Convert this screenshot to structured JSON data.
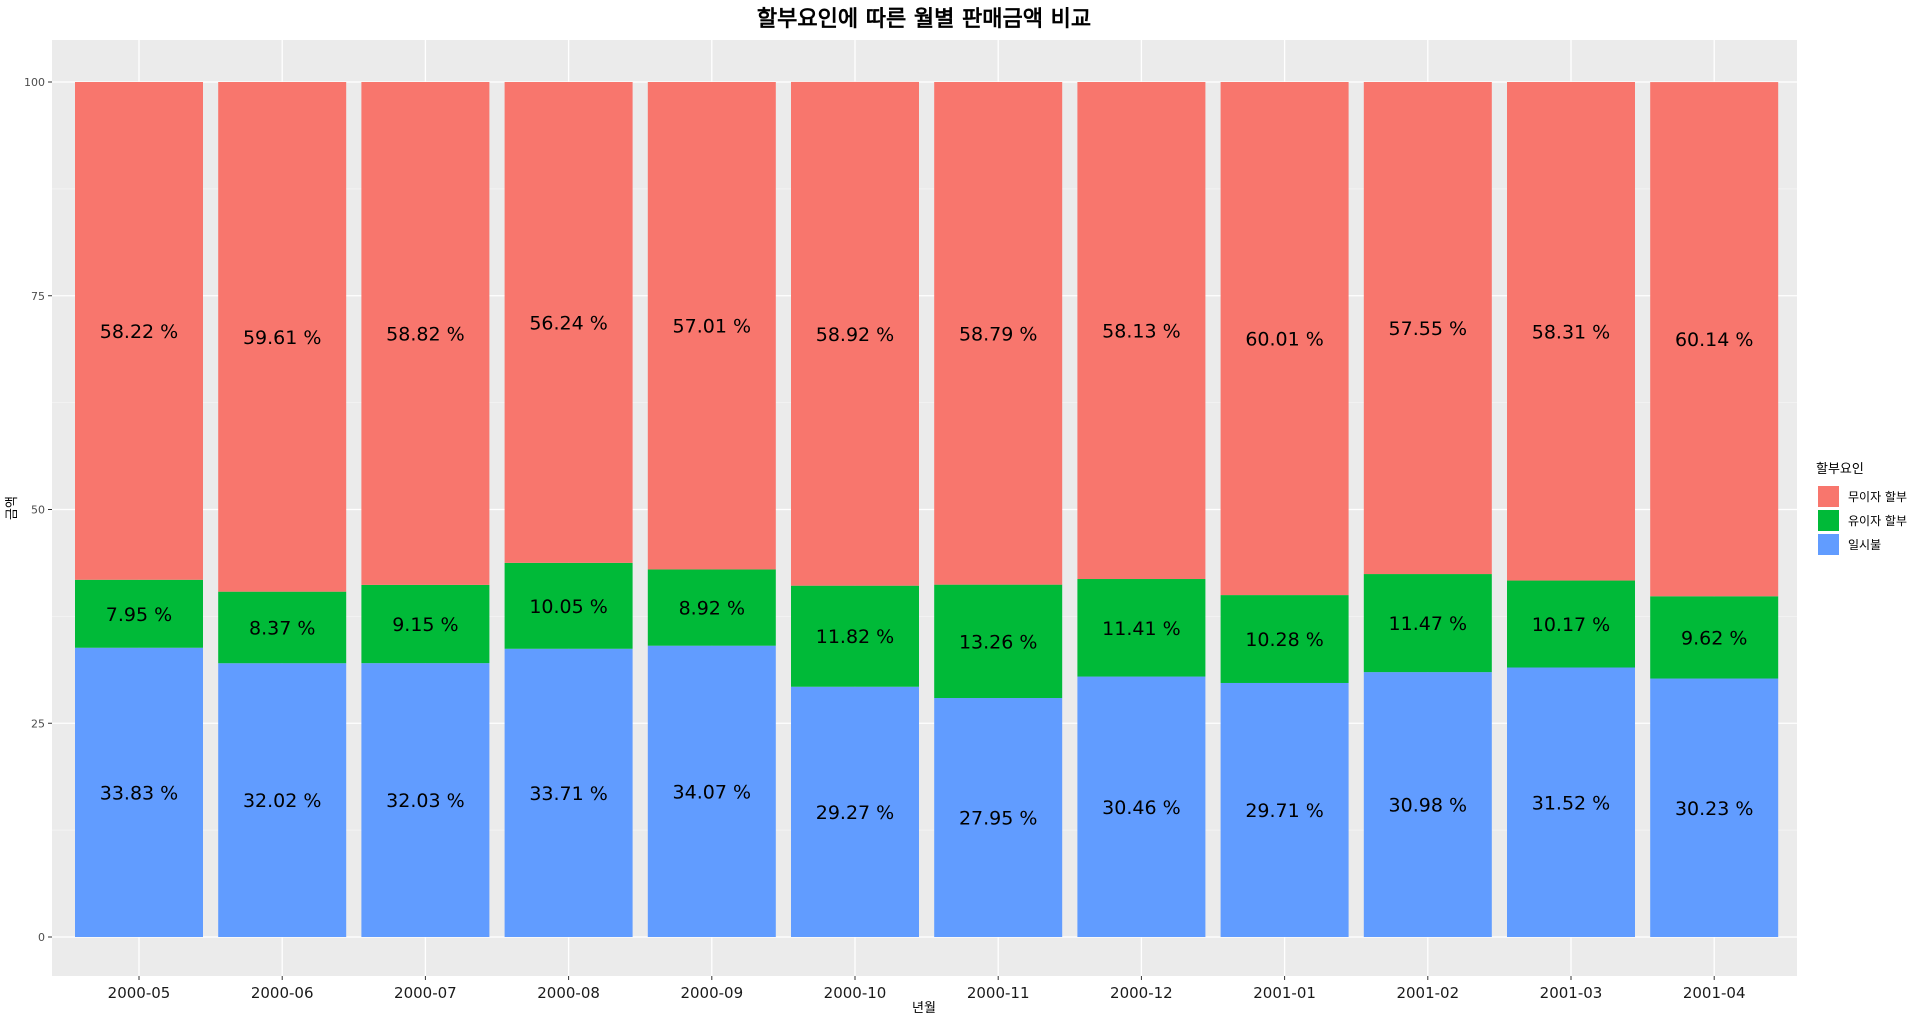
{
  "chart_data": {
    "type": "bar",
    "stacked": true,
    "title": "할부요인에 따른 월별 판매금액 비교",
    "xlabel": "년월",
    "ylabel": "금액",
    "ylim": [
      0,
      100
    ],
    "y_ticks": [
      0,
      25,
      50,
      75,
      100
    ],
    "grid": true,
    "legend_position": "right",
    "legend_title": "할부요인",
    "categories": [
      "2000-05",
      "2000-06",
      "2000-07",
      "2000-08",
      "2000-09",
      "2000-10",
      "2000-11",
      "2000-12",
      "2001-01",
      "2001-02",
      "2001-03",
      "2001-04"
    ],
    "series": [
      {
        "name": "일시불",
        "color": "#619CFF",
        "values": [
          33.83,
          32.02,
          32.03,
          33.71,
          34.07,
          29.27,
          27.95,
          30.46,
          29.71,
          30.98,
          31.52,
          30.23
        ],
        "labels": [
          "33.83 %",
          "32.02 %",
          "32.03 %",
          "33.71 %",
          "34.07 %",
          "29.27 %",
          "27.95 %",
          "30.46 %",
          "29.71 %",
          "30.98 %",
          "31.52 %",
          "30.23 %"
        ]
      },
      {
        "name": "유이자 할부",
        "color": "#00BA38",
        "values": [
          7.95,
          8.37,
          9.15,
          10.05,
          8.92,
          11.82,
          13.26,
          11.41,
          10.28,
          11.47,
          10.17,
          9.62
        ],
        "labels": [
          "7.95 %",
          "8.37 %",
          "9.15 %",
          "10.05 %",
          "8.92 %",
          "11.82 %",
          "13.26 %",
          "11.41 %",
          "10.28 %",
          "11.47 %",
          "10.17 %",
          "9.62 %"
        ]
      },
      {
        "name": "무이자 할부",
        "color": "#F8766D",
        "values": [
          58.22,
          59.61,
          58.82,
          56.24,
          57.01,
          58.92,
          58.79,
          58.13,
          60.01,
          57.55,
          58.31,
          60.14
        ],
        "labels": [
          "58.22 %",
          "59.61 %",
          "58.82 %",
          "56.24 %",
          "57.01 %",
          "58.92 %",
          "58.79 %",
          "58.13 %",
          "60.01 %",
          "57.55 %",
          "58.31 %",
          "60.14 %"
        ]
      }
    ],
    "legend_order": [
      "무이자 할부",
      "유이자 할부",
      "일시불"
    ]
  }
}
